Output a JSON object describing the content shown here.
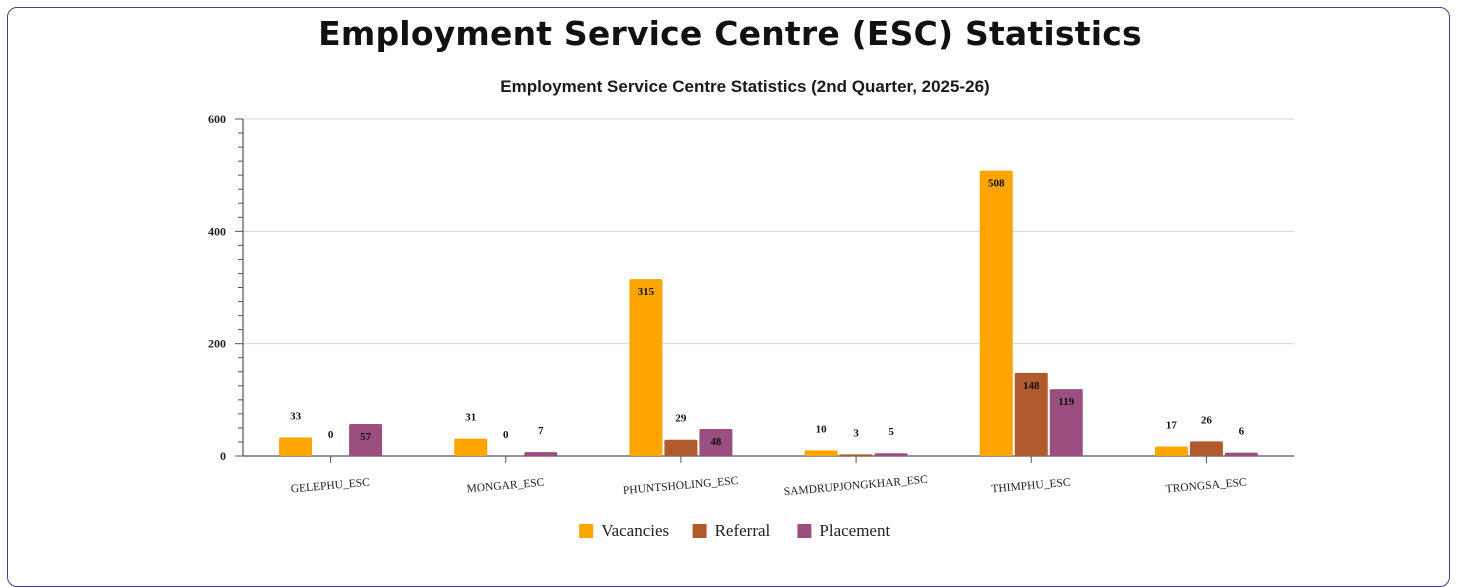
{
  "page": {
    "title": "Employment Service Centre (ESC) Statistics"
  },
  "chart_data": {
    "type": "bar",
    "title": "Employment Service Centre Statistics (2nd Quarter, 2025-26)",
    "xlabel": "",
    "ylabel": "",
    "categories": [
      "GELEPHU_ESC",
      "MONGAR_ESC",
      "PHUNTSHOLING_ESC",
      "SAMDRUPJONGKHAR_ESC",
      "THIMPHU_ESC",
      "TRONGSA_ESC"
    ],
    "series": [
      {
        "name": "Vacancies",
        "color": "#ffa500",
        "values": [
          33,
          31,
          315,
          10,
          508,
          17
        ]
      },
      {
        "name": "Referral",
        "color": "#b05a2e",
        "values": [
          0,
          0,
          29,
          3,
          148,
          26
        ]
      },
      {
        "name": "Placement",
        "color": "#9b4f80",
        "values": [
          57,
          7,
          48,
          5,
          119,
          6
        ]
      }
    ],
    "ylim": [
      0,
      600
    ],
    "yticks": [
      0,
      200,
      400,
      600
    ],
    "grid": true,
    "legend": "bottom"
  }
}
